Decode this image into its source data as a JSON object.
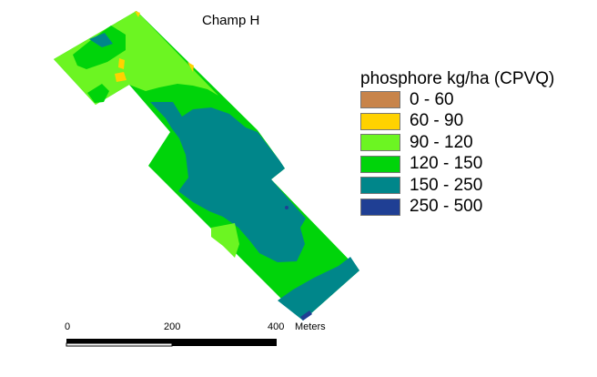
{
  "title": "Champ H",
  "legend": {
    "title": "phosphore kg/ha (CPVQ)",
    "classes": [
      {
        "label": "0 - 60",
        "color": "#c8844a"
      },
      {
        "label": "60 - 90",
        "color": "#ffd200"
      },
      {
        "label": "90 - 120",
        "color": "#6cf522"
      },
      {
        "label": "120 - 150",
        "color": "#00d40a"
      },
      {
        "label": "150 - 250",
        "color": "#00868a"
      },
      {
        "label": "250 - 500",
        "color": "#1f3f94"
      }
    ]
  },
  "scalebar": {
    "ticks": [
      "0",
      "200",
      "400"
    ],
    "unit": "Meters"
  }
}
